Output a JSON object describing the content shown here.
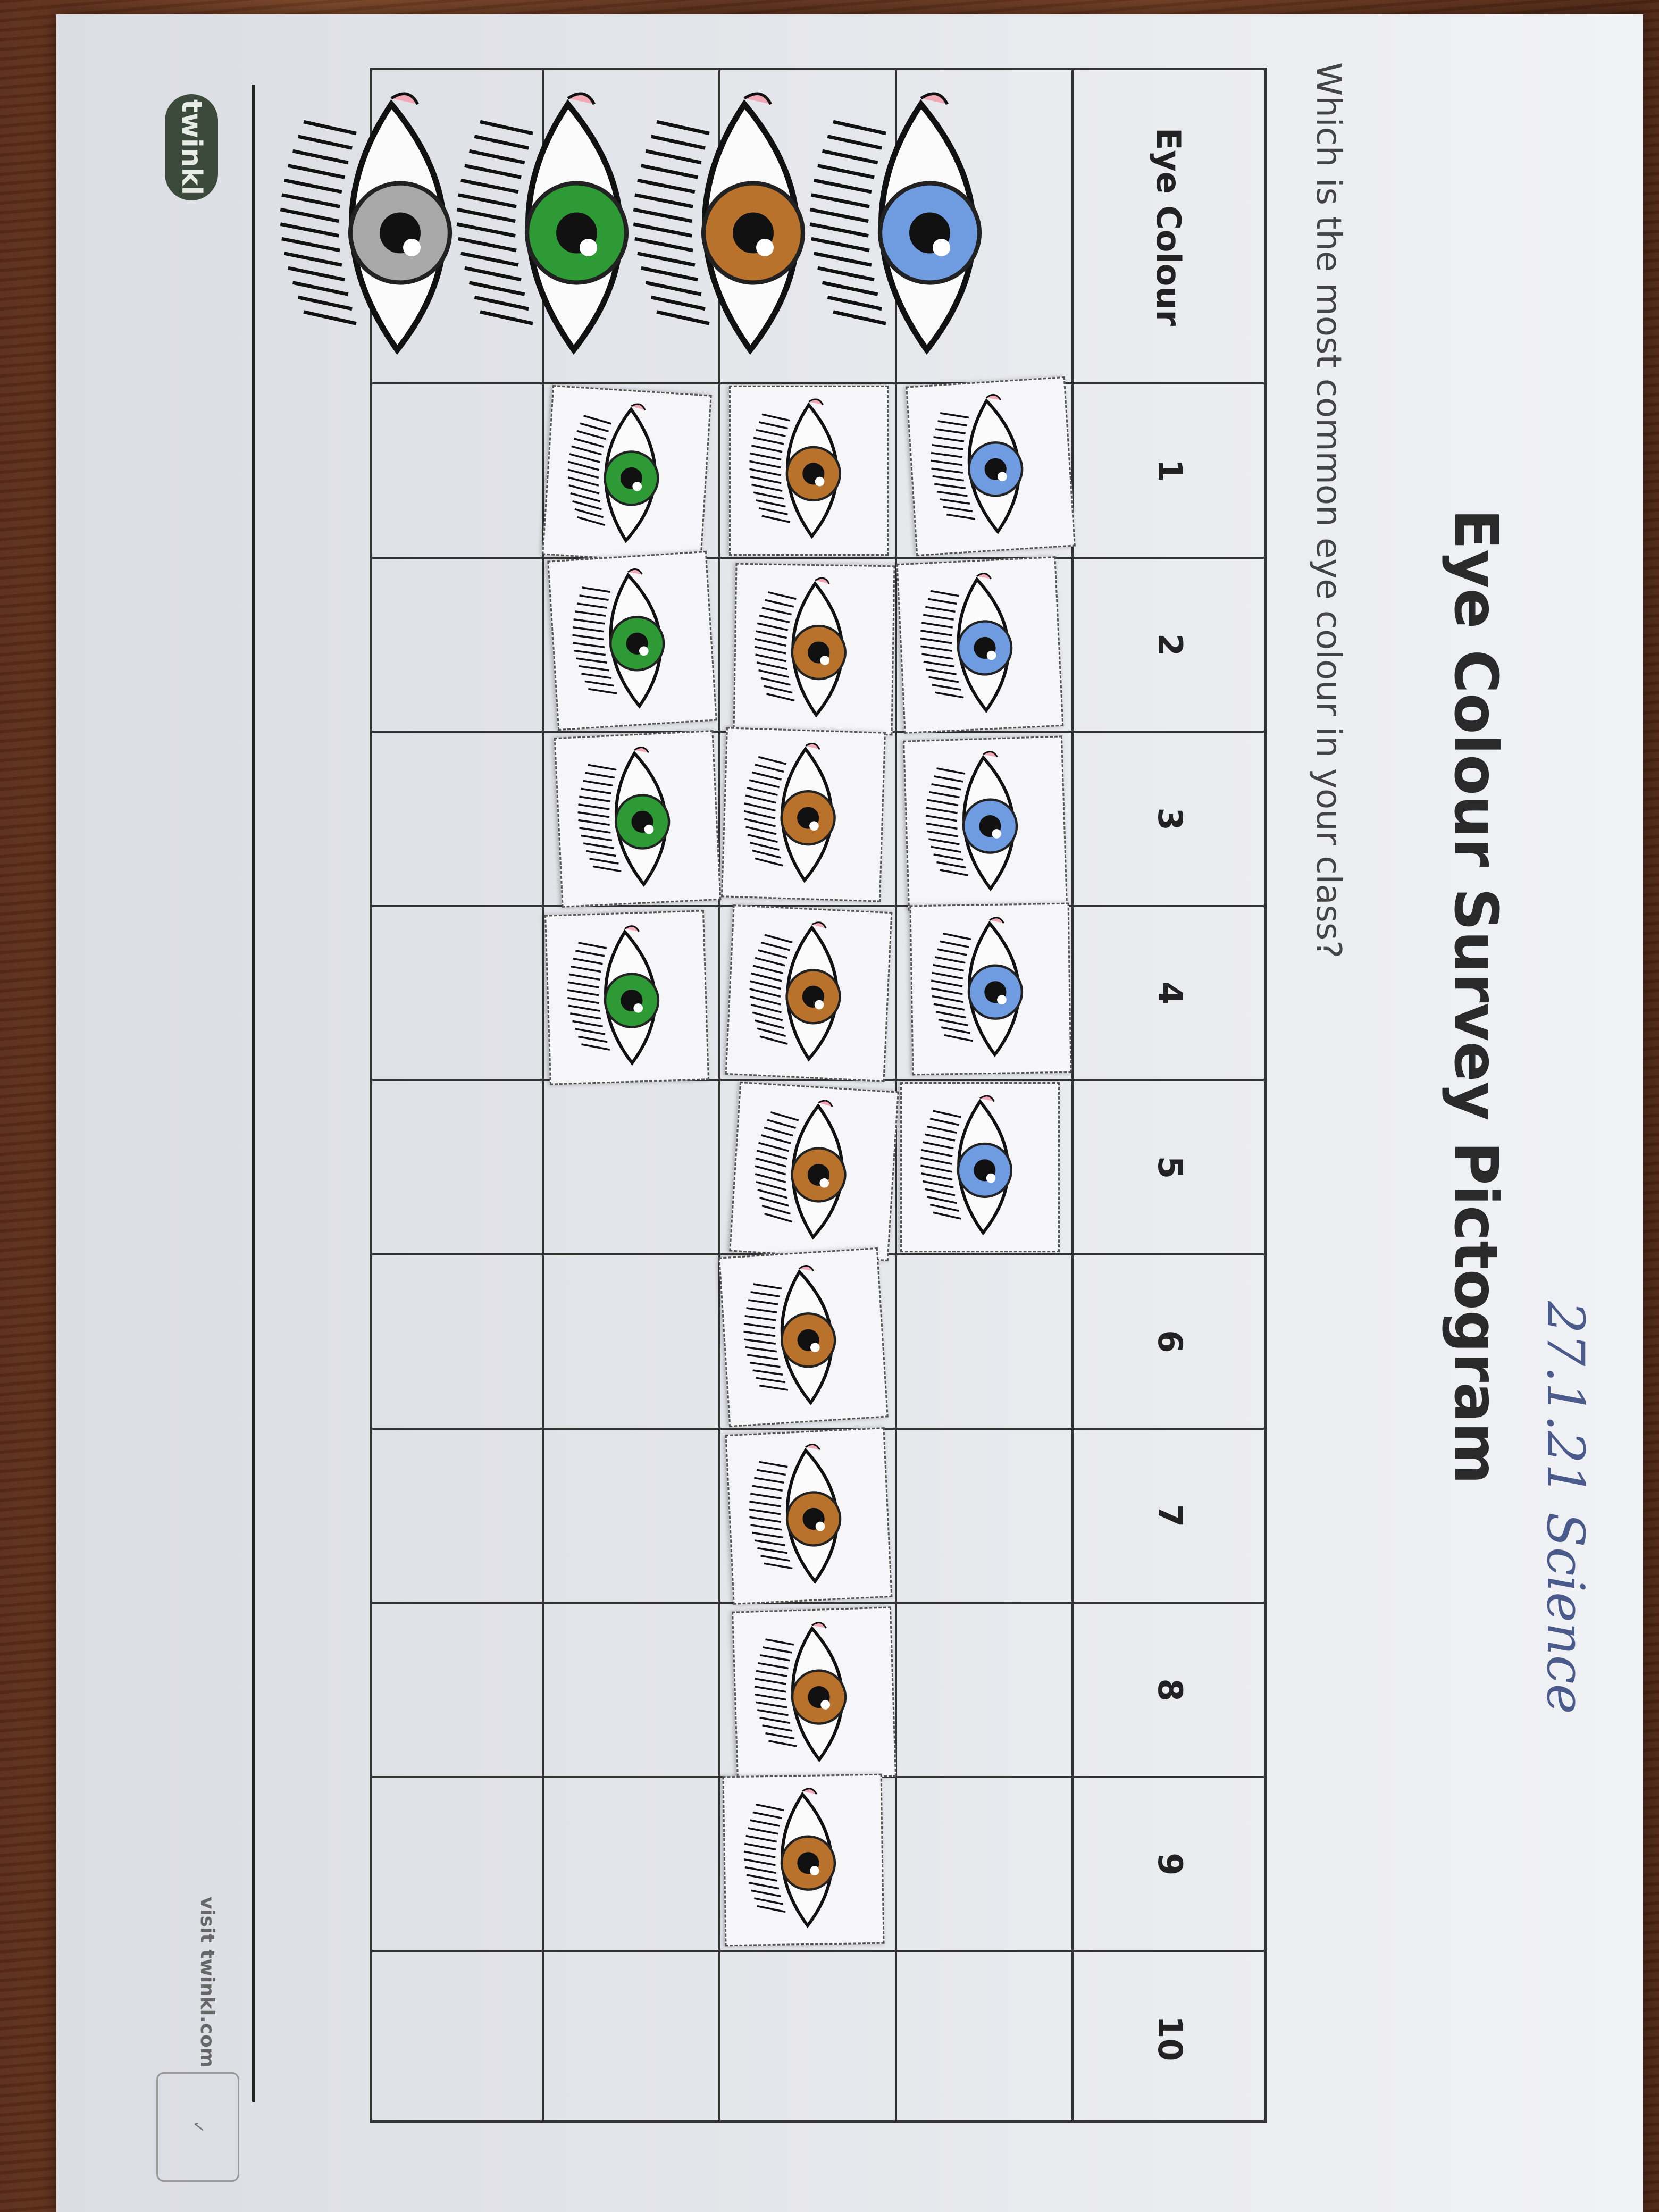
{
  "worksheet": {
    "title": "Eye Colour Survey Pictogram",
    "handwritten_note": "27.1.21 Science",
    "question": "Which is the most common eye colour in your class?",
    "header_label": "Eye Colour",
    "logo_text": "twinkl",
    "footer": "visit twinkl.com"
  },
  "chart_data": {
    "type": "pictogram",
    "title": "Eye Colour Survey Pictogram",
    "column_labels": [
      "1",
      "2",
      "3",
      "4",
      "5",
      "6",
      "7",
      "8",
      "9",
      "10"
    ],
    "categories": [
      "blue",
      "brown",
      "green",
      "grey"
    ],
    "category_colors": {
      "blue": "#6f9be0",
      "brown": "#b8722c",
      "green": "#2e9a35",
      "grey": "#a8a8a8"
    },
    "values": [
      5,
      9,
      4,
      0
    ],
    "max": 10
  }
}
